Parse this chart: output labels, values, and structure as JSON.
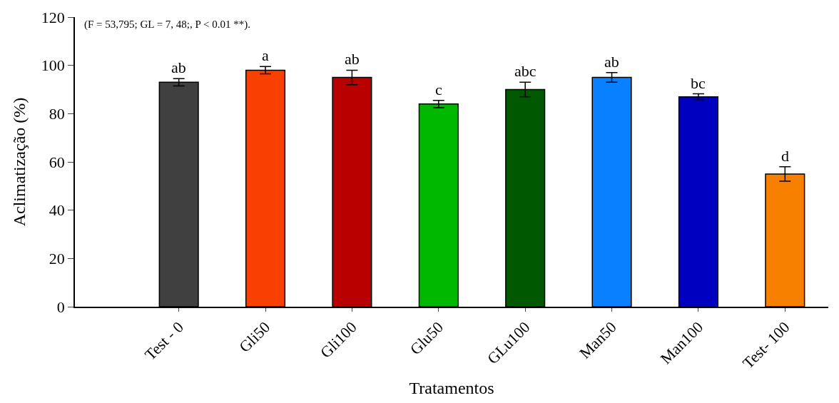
{
  "chart_data": {
    "type": "bar",
    "xlabel": "Tratamentos",
    "ylabel": "Aclimatização (%)",
    "categories": [
      "Test - 0",
      "Gli50",
      "Gli100",
      "Glu50",
      "GLu100",
      "Man50",
      "Man100",
      "Test- 100"
    ],
    "values": [
      93,
      98,
      95,
      84,
      90,
      95,
      87,
      55
    ],
    "errors": [
      1.5,
      1.5,
      3,
      1.5,
      3,
      2,
      1.2,
      3
    ],
    "colors": [
      "#404040",
      "#f84000",
      "#b80000",
      "#00b800",
      "#005800",
      "#0880ff",
      "#0000c0",
      "#f88000"
    ],
    "ylim": [
      0,
      120
    ],
    "yticks": [
      0,
      20,
      40,
      60,
      80,
      100,
      120
    ],
    "legend": false,
    "value_labels": [
      "ab",
      "a",
      "ab",
      "c",
      "abc",
      "ab",
      "bc",
      "d"
    ],
    "annotations": [
      "(F = 53,795; GL = 7, 48;, P < 0.01 **)."
    ]
  }
}
